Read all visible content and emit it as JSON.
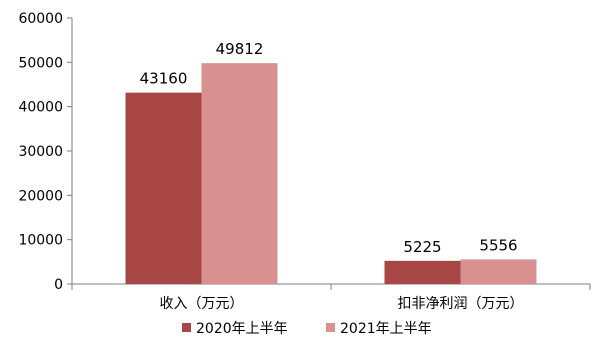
{
  "chart_data": {
    "type": "bar",
    "categories": [
      "收入（万元）",
      "扣非净利润（万元）"
    ],
    "series": [
      {
        "name": "2020年上半年",
        "values": [
          43160,
          5225
        ],
        "color": "#a84545"
      },
      {
        "name": "2021年上半年",
        "values": [
          49812,
          5556
        ],
        "color": "#d99090"
      }
    ],
    "y_ticks": [
      0,
      10000,
      20000,
      30000,
      40000,
      50000,
      60000
    ],
    "ylim": [
      0,
      60000
    ],
    "data_labels": true,
    "legend_position": "bottom",
    "grid": false
  }
}
